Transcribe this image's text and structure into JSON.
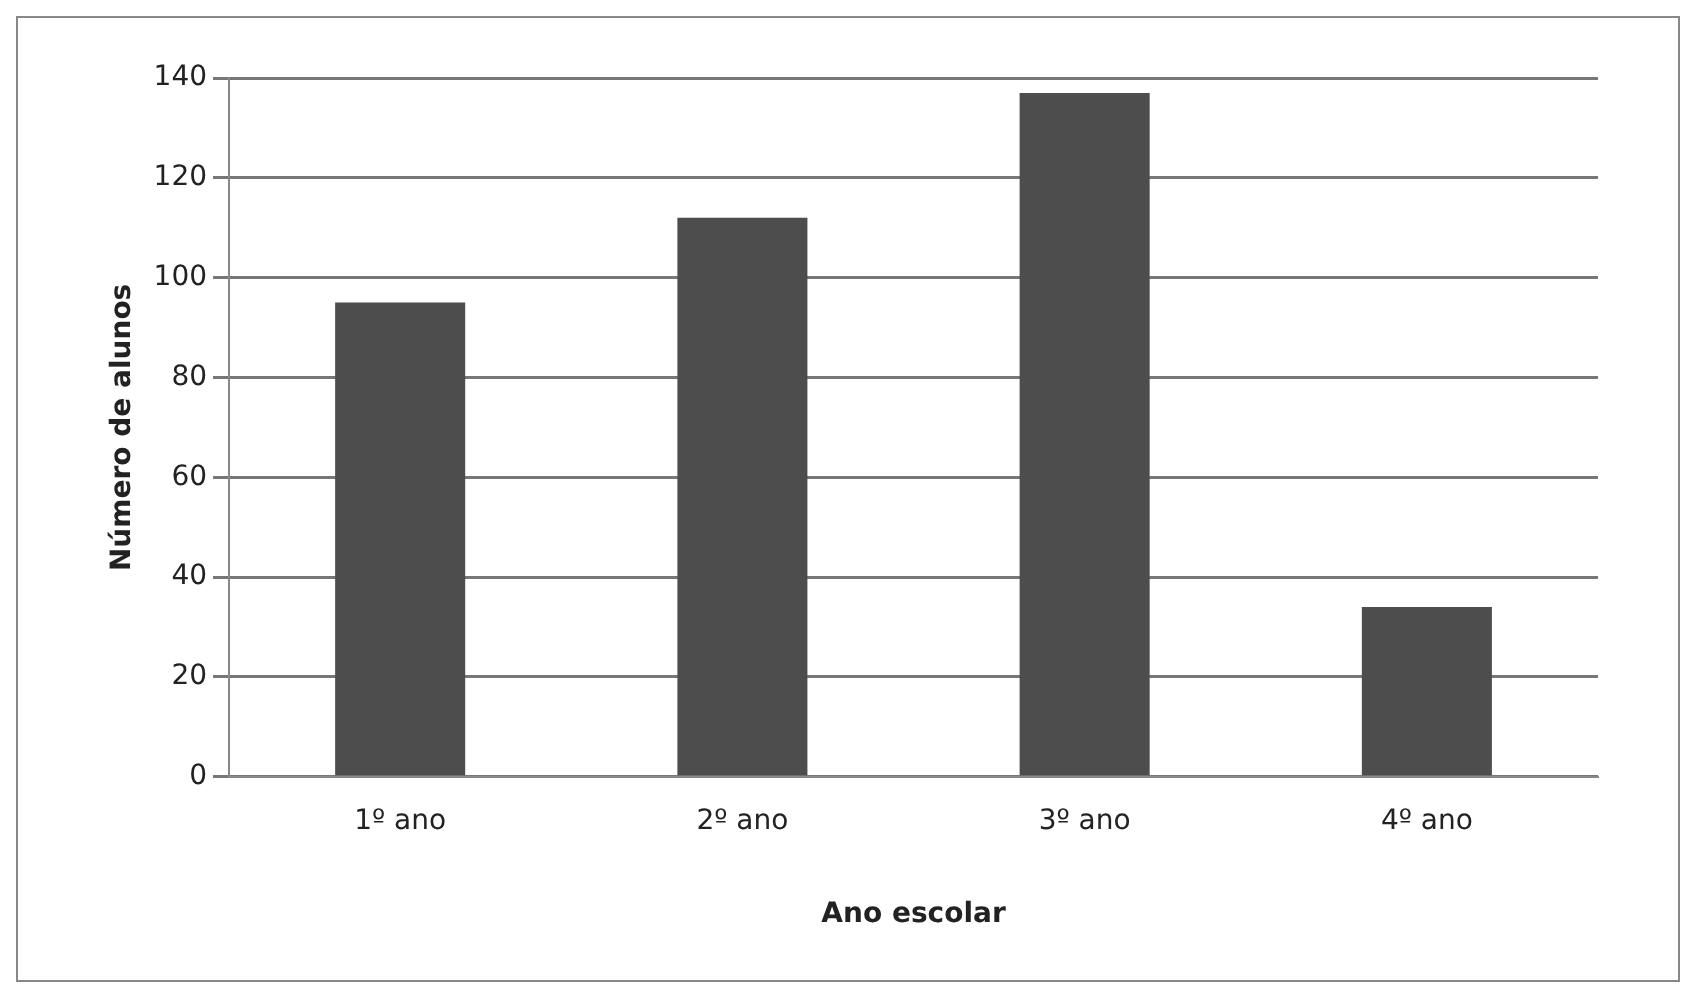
{
  "chart_data": {
    "type": "bar",
    "xlabel": "Ano escolar",
    "ylabel": "Número de alunos",
    "categories": [
      "1º ano",
      "2º ano",
      "3º ano",
      "4º ano"
    ],
    "values": [
      95,
      112,
      137,
      34
    ],
    "color": "#4d4d4d",
    "ylim": [
      0,
      140
    ],
    "yticks": [
      0,
      20,
      40,
      60,
      80,
      100,
      120,
      140
    ],
    "grid": "y"
  }
}
